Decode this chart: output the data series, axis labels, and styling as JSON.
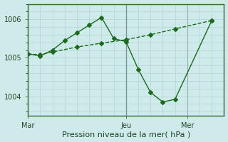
{
  "bg_color": "#ceeaea",
  "grid_color_major": "#b8d8d8",
  "grid_color_minor": "#cce4e4",
  "line_color": "#1a6b1a",
  "xlabel": "Pression niveau de la mer( hPa )",
  "xlabel_fontsize": 8,
  "tick_fontsize": 7,
  "ylim": [
    1003.5,
    1006.4
  ],
  "yticks": [
    1004,
    1005,
    1006
  ],
  "xlim": [
    0,
    16
  ],
  "x_mar": 0,
  "x_jeu": 8,
  "x_mer": 13,
  "line1_x": [
    0,
    1,
    2,
    4,
    6,
    8,
    10,
    12,
    15
  ],
  "line1_y": [
    1005.1,
    1005.08,
    1005.15,
    1005.28,
    1005.38,
    1005.47,
    1005.6,
    1005.75,
    1005.97
  ],
  "line2_x": [
    0,
    1,
    2,
    3,
    4,
    5,
    6,
    7,
    8,
    9,
    10,
    11,
    12,
    15
  ],
  "line2_y": [
    1005.1,
    1005.05,
    1005.2,
    1005.45,
    1005.65,
    1005.85,
    1006.05,
    1005.5,
    1005.42,
    1004.7,
    1004.1,
    1003.85,
    1003.92,
    1005.97
  ]
}
